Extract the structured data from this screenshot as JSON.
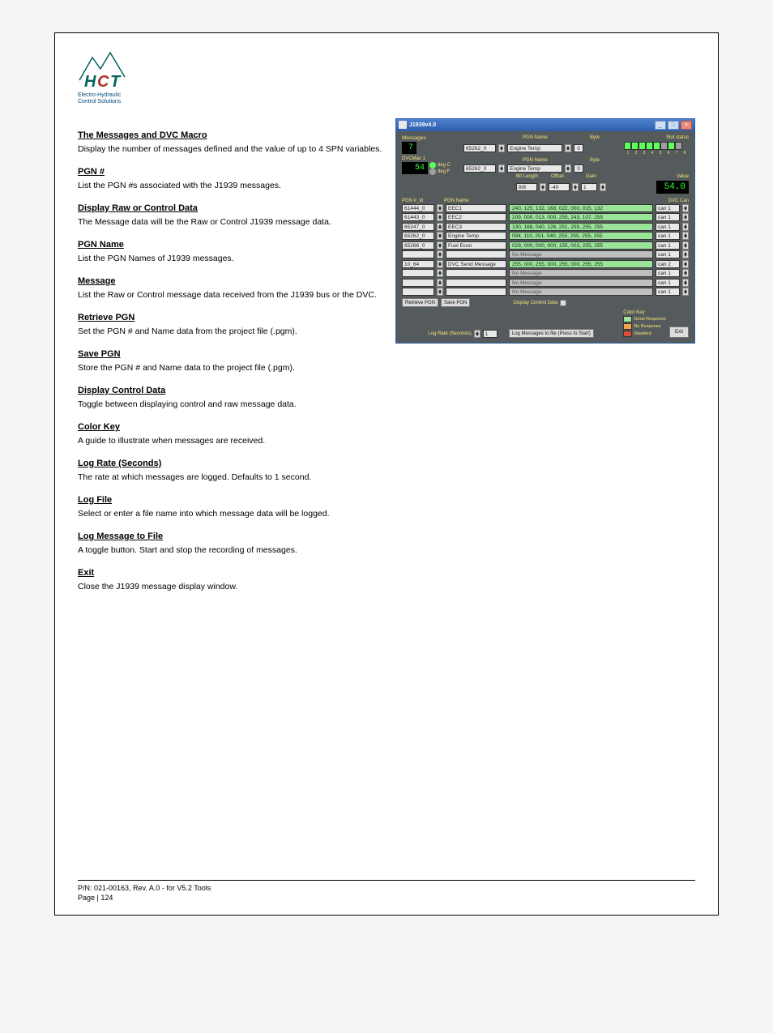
{
  "logo": {
    "line1": "Electro-Hydraulic",
    "line2": "Control Solutions"
  },
  "sections": {
    "messages_heading": "The Messages and DVC Macro",
    "messages_p1": "Display the number of messages defined and the value of up to 4 SPN variables.",
    "pgn_heading": "PGN #",
    "pgn_p1": "List the PGN #s associated with the J1939 messages.",
    "data_heading": "Display Raw or Control Data",
    "data_p1": "The Message data will be the Raw or Control J1939 message data.",
    "pgnname_heading": "PGN Name",
    "pgnname_p1": "List the PGN Names of J1939 messages.",
    "msg_heading": "Message",
    "msg_p1": "List the Raw or Control message data received from the J1939 bus or the DVC.",
    "retrieve_heading": "Retrieve PGN",
    "retrieve_p1": "Set the PGN # and Name data from the project file (.pgm).",
    "save_heading": "Save PGN",
    "save_p1": "Store the PGN # and Name data to the project file (.pgm).",
    "control_heading": "Display Control Data",
    "control_p1": "Toggle between displaying control and raw message data.",
    "color_heading": "Color Key",
    "color_p1": "A guide to illustrate when messages are received.",
    "rate_heading": "Log Rate (Seconds)",
    "rate_p1": "The rate at which messages are logged.  Defaults to 1 second.",
    "log_heading": "Log File",
    "log_p1": "Select or enter a file name into which message data will be logged.",
    "logmsg_heading": "Log Message to File",
    "logmsg_p1": "A toggle button.  Start and stop the recording of messages.",
    "exit_heading": "Exit",
    "exit_p1": "Close the J1939 message display window."
  },
  "app": {
    "title": "J1939v4.0",
    "labels": {
      "messages": "Messages",
      "dvcmac": "DVCMac 1",
      "degc": "deg C",
      "degf": "deg F",
      "pgn_name": "PGN Name",
      "byte": "Byte",
      "slot_status": "Slot status",
      "bit_length": "Bit Length",
      "offset": "Offset",
      "gain": "Gain",
      "value": "Value",
      "pgn_col": "PGN #_id",
      "pgname_col": "PGN Name",
      "dvccan_col": "DVC Can",
      "retrieve": "Retrieve PGN",
      "save": "Save PGN",
      "display_control": "Display Control Data",
      "color_key": "Color Key",
      "good": "Good Response",
      "noresp": "No Response",
      "disabled": "Disabled",
      "log_rate": "Log Rate (Seconds)",
      "log_btn": "Log Messages to file (Press to Start)",
      "exit": "Exit"
    },
    "values": {
      "messages": "7",
      "dvcmac": "54",
      "sel1_pgn": "65262_0",
      "sel1_name": "Engine Temp",
      "sel1_byte": "0",
      "sel2_pgn": "65262_0",
      "sel2_name": "Engine Temp",
      "sel2_byte": "0",
      "bit_length": "8/8",
      "offset": "-40",
      "gain": "1",
      "value": "54.0",
      "lograte": "1"
    },
    "slots": [
      "on",
      "on",
      "on",
      "on",
      "on",
      "off",
      "on",
      "off"
    ],
    "slot_nums": [
      "1",
      "2",
      "3",
      "4",
      "5",
      "6",
      "7",
      "8"
    ],
    "rows": [
      {
        "pgn": "61444_0",
        "name": "EEC1",
        "msg": "240, 125, 132, 168, 022, 000, 015, 132",
        "green": true,
        "can": "can 1"
      },
      {
        "pgn": "61443_0",
        "name": "EEC2",
        "msg": "209, 000, 013, 000, 255, 243, 107, 255",
        "green": true,
        "can": "can 1"
      },
      {
        "pgn": "65247_0",
        "name": "EEC3",
        "msg": "130, 168, 040, 126, 251, 255, 255, 255",
        "green": true,
        "can": "can 1"
      },
      {
        "pgn": "65262_0",
        "name": "Engine Temp",
        "msg": "094, 110, 251, 040, 255, 255, 255, 255",
        "green": true,
        "can": "can 1"
      },
      {
        "pgn": "65266_0",
        "name": "Fuel Econ",
        "msg": "029, 000, 000, 000, 155, 003, 255, 255",
        "green": true,
        "can": "can 1"
      },
      {
        "pgn": "",
        "name": "",
        "msg": "No Message",
        "green": false,
        "can": "can 1"
      },
      {
        "pgn": "10_64",
        "name": "DVC Send Message",
        "msg": "255, 000, 255, 000, 255, 000, 255, 255",
        "green": true,
        "can": "can 2"
      },
      {
        "pgn": "",
        "name": "",
        "msg": "No Message",
        "green": false,
        "can": "can 1"
      },
      {
        "pgn": "",
        "name": "",
        "msg": "No Message",
        "green": false,
        "can": "can 1"
      },
      {
        "pgn": "",
        "name": "",
        "msg": "No Message",
        "green": false,
        "can": "can 1"
      }
    ]
  },
  "footer": {
    "line1": "P/N: 021-00163, Rev. A.0 - for V5.2 Tools",
    "line2": "Page | 124"
  }
}
